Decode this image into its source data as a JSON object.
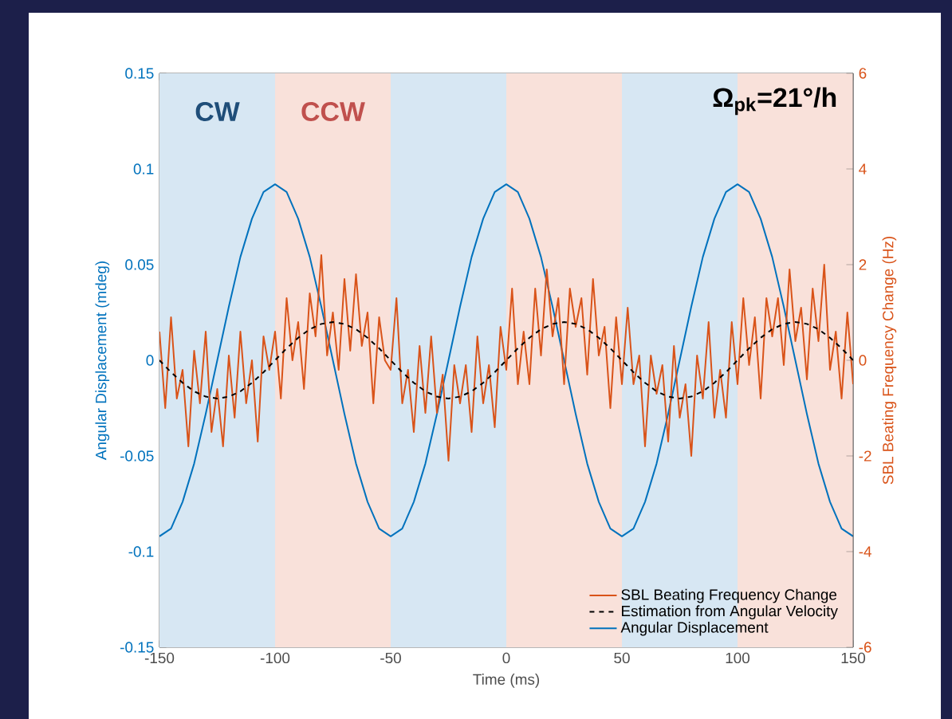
{
  "chart_data": {
    "type": "line",
    "xlabel": "Time (ms)",
    "ylabel": "Angular Displacement (mdeg)",
    "y2label": "SBL Beating Frequency Change (Hz)",
    "xlim": [
      -150,
      150
    ],
    "xticks": [
      -150,
      -100,
      -50,
      0,
      50,
      100,
      150
    ],
    "ylim": [
      -0.15,
      0.15
    ],
    "yticks": [
      -0.15,
      -0.1,
      -0.05,
      0,
      0.05,
      0.1,
      0.15
    ],
    "y2lim": [
      -6,
      6
    ],
    "y2ticks": [
      -6,
      -4,
      -2,
      0,
      2,
      4,
      6
    ],
    "legend": "bottom right",
    "annotations": [
      "**Ω$_{pk}$=21°/h**"
    ],
    "bands": [
      {
        "axis": "x",
        "from": -150,
        "to": -100,
        "color": "#d7e7f3",
        "label": "CW"
      },
      {
        "axis": "x",
        "from": -100,
        "to": -50,
        "color": "#f9e1da",
        "label": "CCW"
      },
      {
        "axis": "x",
        "from": -50,
        "to": 0,
        "color": "#d7e7f3"
      },
      {
        "axis": "x",
        "from": 0,
        "to": 50,
        "color": "#f9e1da"
      },
      {
        "axis": "x",
        "from": 50,
        "to": 100,
        "color": "#d7e7f3"
      },
      {
        "axis": "x",
        "from": 100,
        "to": 150,
        "color": "#f9e1da"
      }
    ],
    "x": [
      -150,
      -145,
      -140,
      -135,
      -130,
      -125,
      -120,
      -115,
      -110,
      -105,
      -100,
      -95,
      -90,
      -85,
      -80,
      -75,
      -70,
      -65,
      -60,
      -55,
      -50,
      -45,
      -40,
      -35,
      -30,
      -25,
      -20,
      -15,
      -10,
      -5,
      0,
      5,
      10,
      15,
      20,
      25,
      30,
      35,
      40,
      45,
      50,
      55,
      60,
      65,
      70,
      75,
      80,
      85,
      90,
      95,
      100,
      105,
      110,
      115,
      120,
      125,
      130,
      135,
      140,
      145,
      150
    ],
    "series": [
      {
        "name": "SBL Beating Frequency Change",
        "color": "#d95319",
        "axis": "y2",
        "x": [
          -150,
          -147.5,
          -145,
          -142.5,
          -140,
          -137.5,
          -135,
          -132.5,
          -130,
          -127.5,
          -125,
          -122.5,
          -120,
          -117.5,
          -115,
          -112.5,
          -110,
          -107.5,
          -105,
          -102.5,
          -100,
          -97.5,
          -95,
          -92.5,
          -90,
          -87.5,
          -85,
          -82.5,
          -80,
          -77.5,
          -75,
          -72.5,
          -70,
          -67.5,
          -65,
          -62.5,
          -60,
          -57.5,
          -55,
          -52.5,
          -50,
          -47.5,
          -45,
          -42.5,
          -40,
          -37.5,
          -35,
          -32.5,
          -30,
          -27.5,
          -25,
          -22.5,
          -20,
          -17.5,
          -15,
          -12.5,
          -10,
          -7.5,
          -5,
          -2.5,
          0,
          2.5,
          5,
          7.5,
          10,
          12.5,
          15,
          17.5,
          20,
          22.5,
          25,
          27.5,
          30,
          32.5,
          35,
          37.5,
          40,
          42.5,
          45,
          47.5,
          50,
          52.5,
          55,
          57.5,
          60,
          62.5,
          65,
          67.5,
          70,
          72.5,
          75,
          77.5,
          80,
          82.5,
          85,
          87.5,
          90,
          92.5,
          95,
          97.5,
          100,
          102.5,
          105,
          107.5,
          110,
          112.5,
          115,
          117.5,
          120,
          122.5,
          125,
          127.5,
          130,
          132.5,
          135,
          137.5,
          140,
          142.5,
          145,
          147.5,
          150
        ],
        "values": [
          0.6,
          -1.0,
          0.9,
          -0.8,
          -0.2,
          -1.8,
          0.2,
          -0.9,
          0.6,
          -1.5,
          -0.6,
          -1.8,
          0.1,
          -1.2,
          0.6,
          -0.9,
          0,
          -1.7,
          0.5,
          -0.2,
          0.6,
          -0.8,
          1.3,
          0,
          0.8,
          -0.6,
          1.4,
          0.5,
          2.2,
          0.1,
          1.0,
          -0.2,
          1.7,
          0.2,
          1.8,
          0.3,
          1.0,
          -0.9,
          0.9,
          0,
          -0.2,
          1.3,
          -0.9,
          -0.2,
          -1.5,
          0.3,
          -1.1,
          0.5,
          -1.1,
          -0.3,
          -2.1,
          -0.1,
          -0.9,
          -0.1,
          -1.5,
          0.5,
          -0.9,
          -0.1,
          -1.4,
          0.7,
          -0.2,
          1.5,
          -0.5,
          0.6,
          -0.5,
          1.5,
          0.1,
          1.9,
          0.5,
          1.3,
          -0.5,
          1.5,
          0.7,
          1.3,
          -0.3,
          1.7,
          0.1,
          0.7,
          -1.0,
          0.9,
          -0.5,
          1.1,
          -0.5,
          0.1,
          -1.8,
          0.1,
          -0.7,
          -0.1,
          -1.7,
          0.3,
          -1.2,
          -0.5,
          -2.0,
          0.1,
          -0.8,
          0.8,
          -1.2,
          -0.2,
          -1.2,
          0.8,
          -0.5,
          1.3,
          -0.1,
          0.9,
          -0.8,
          1.3,
          0.5,
          1.3,
          -0.1,
          1.9,
          0.4,
          1.1,
          -0.4,
          1.5,
          0.4,
          2.0,
          -0.2,
          0.6,
          -0.8,
          1.0,
          -0.5
        ]
      },
      {
        "name": "Estimation from Angular Velocity",
        "color": "#000000",
        "axis": "y2",
        "line_style": "dashed",
        "values": [
          0,
          -0.25,
          -0.47,
          -0.65,
          -0.76,
          -0.8,
          -0.76,
          -0.65,
          -0.47,
          -0.25,
          0,
          0.25,
          0.47,
          0.65,
          0.76,
          0.8,
          0.76,
          0.65,
          0.47,
          0.25,
          0,
          -0.25,
          -0.47,
          -0.65,
          -0.76,
          -0.8,
          -0.76,
          -0.65,
          -0.47,
          -0.25,
          0,
          0.25,
          0.47,
          0.65,
          0.76,
          0.8,
          0.76,
          0.65,
          0.47,
          0.25,
          0,
          -0.25,
          -0.47,
          -0.65,
          -0.76,
          -0.8,
          -0.76,
          -0.65,
          -0.47,
          -0.25,
          0,
          0.25,
          0.47,
          0.65,
          0.76,
          0.8,
          0.76,
          0.65,
          0.47,
          0.25,
          0
        ]
      },
      {
        "name": "Angular Displacement",
        "color": "#0072bd",
        "values": [
          -0.092,
          -0.088,
          -0.074,
          -0.054,
          -0.028,
          0,
          0.028,
          0.054,
          0.074,
          0.088,
          0.092,
          0.088,
          0.074,
          0.054,
          0.028,
          0,
          -0.028,
          -0.054,
          -0.074,
          -0.088,
          -0.092,
          -0.088,
          -0.074,
          -0.054,
          -0.028,
          0,
          0.028,
          0.054,
          0.074,
          0.088,
          0.092,
          0.088,
          0.074,
          0.054,
          0.028,
          0,
          -0.028,
          -0.054,
          -0.074,
          -0.088,
          -0.092,
          -0.088,
          -0.074,
          -0.054,
          -0.028,
          0,
          0.028,
          0.054,
          0.074,
          0.088,
          0.092,
          0.088,
          0.074,
          0.054,
          0.028,
          0,
          -0.028,
          -0.054,
          -0.074,
          -0.088,
          -0.092
        ]
      }
    ]
  }
}
